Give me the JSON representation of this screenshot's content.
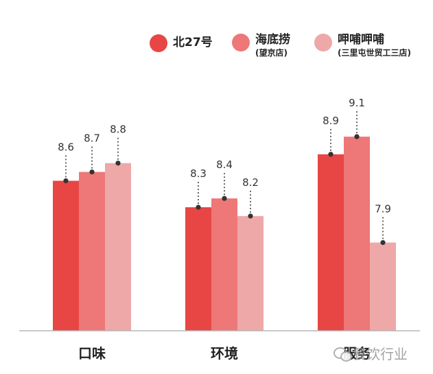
{
  "chart_data": {
    "type": "bar",
    "categories": [
      "口味",
      "环境",
      "服务"
    ],
    "series": [
      {
        "name": "北27号",
        "sub": "",
        "color": "#e84545",
        "values": [
          8.6,
          8.3,
          8.9
        ]
      },
      {
        "name": "海底捞",
        "sub": "(望京店)",
        "color": "#ee7777",
        "values": [
          8.7,
          8.4,
          9.1
        ]
      },
      {
        "name": "呷哺呷哺",
        "sub": "(三里屯世贸工三店)",
        "color": "#eea8a8",
        "values": [
          8.8,
          8.2,
          7.9
        ]
      }
    ],
    "title": "",
    "xlabel": "",
    "ylabel": "",
    "ylim": [
      6.9,
      9.7
    ],
    "grid": false,
    "legend_position": "top-right",
    "data_labels": true
  },
  "watermark": {
    "text": "餐饮行业",
    "icon": "wechat-icon"
  }
}
